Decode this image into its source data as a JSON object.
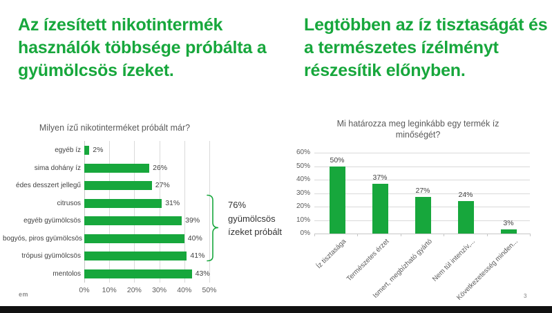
{
  "slide": {
    "page_number": "3",
    "logo_text": "em",
    "accent_green": "#17A73C",
    "left": {
      "heading": "Az ízesített nikotintermék használók többsége próbálta a gyümölcsös ízeket.",
      "annotation": "76% gyümölcsös ízeket próbált"
    },
    "right": {
      "heading": "Legtöbben az íz tisztaságát és a természetes ízélményt részesítik előnyben."
    }
  },
  "chart_data": [
    {
      "type": "bar",
      "orientation": "horizontal",
      "title": "Milyen ízű nikotinterméket próbált már?",
      "categories": [
        "egyéb íz",
        "sima dohány íz",
        "édes desszert jellegű",
        "citrusos",
        "egyéb gyümölcsös",
        "bogyós, piros gyümölcsös",
        "trópusi gyümölcsös",
        "mentolos"
      ],
      "values": [
        2,
        26,
        27,
        31,
        39,
        40,
        41,
        43
      ],
      "data_labels": [
        "2%",
        "26%",
        "27%",
        "31%",
        "39%",
        "40%",
        "41%",
        "43%"
      ],
      "x_ticks": [
        "0%",
        "10%",
        "20%",
        "30%",
        "40%",
        "50%"
      ],
      "xlim": [
        0,
        50
      ],
      "grid": "vertical",
      "bar_color": "#17A73C",
      "annotation": "76% gyümölcsös ízeket próbált",
      "annotation_rows": [
        "citrusos",
        "egyéb gyümölcsös",
        "bogyós, piros gyümölcsös",
        "trópusi gyümölcsös"
      ]
    },
    {
      "type": "bar",
      "orientation": "vertical",
      "title": "Mi határozza meg leginkább egy termék íz minőségét?",
      "categories": [
        "Íz tisztasága",
        "Természetes érzet",
        "Ismert, megbízható gyártó",
        "Nem túl intenzív,...",
        "Következetesség minden..."
      ],
      "values": [
        50,
        37,
        27,
        24,
        3
      ],
      "data_labels": [
        "50%",
        "37%",
        "27%",
        "24%",
        "3%"
      ],
      "y_ticks": [
        "0%",
        "10%",
        "20%",
        "30%",
        "40%",
        "50%",
        "60%"
      ],
      "ylim": [
        0,
        60
      ],
      "grid": "horizontal",
      "bar_color": "#17A73C"
    }
  ]
}
